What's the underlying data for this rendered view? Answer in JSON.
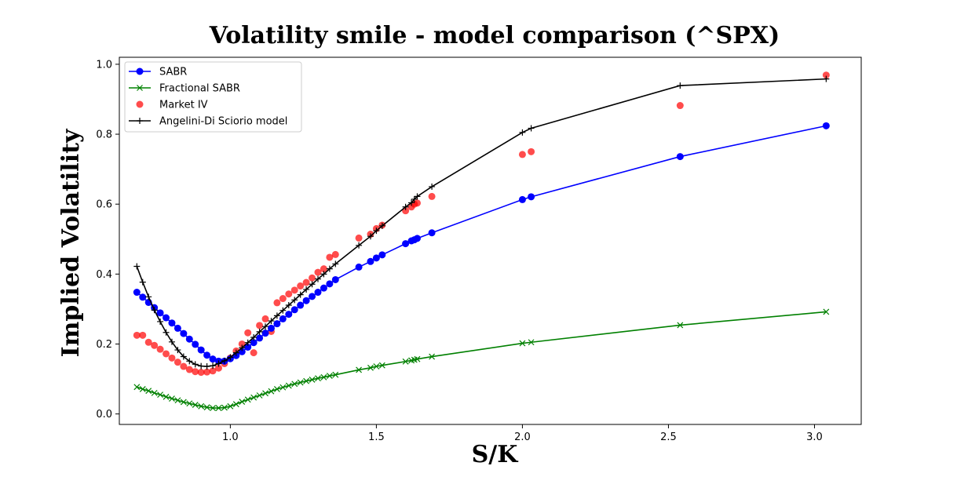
{
  "chart_data": {
    "type": "line",
    "title": "Volatility smile - model comparison (^SPX)",
    "xlabel": "S/K",
    "ylabel": "Implied Volatility",
    "xlim": [
      0.62,
      3.16
    ],
    "ylim": [
      -0.03,
      1.02
    ],
    "xticks": [
      1.0,
      1.5,
      2.0,
      2.5,
      3.0
    ],
    "xtick_labels": [
      "1.0",
      "1.5",
      "2.0",
      "2.5",
      "3.0"
    ],
    "yticks": [
      0.0,
      0.2,
      0.4,
      0.6,
      0.8,
      1.0
    ],
    "ytick_labels": [
      "0.0",
      "0.2",
      "0.4",
      "0.6",
      "0.8",
      "1.0"
    ],
    "grid": false,
    "legend_position": "top-left",
    "x": [
      0.68,
      0.7,
      0.72,
      0.74,
      0.76,
      0.78,
      0.8,
      0.82,
      0.84,
      0.86,
      0.88,
      0.9,
      0.92,
      0.94,
      0.96,
      0.98,
      1.0,
      1.02,
      1.04,
      1.06,
      1.08,
      1.1,
      1.12,
      1.14,
      1.16,
      1.18,
      1.2,
      1.22,
      1.24,
      1.26,
      1.28,
      1.3,
      1.32,
      1.34,
      1.36,
      1.44,
      1.48,
      1.5,
      1.52,
      1.6,
      1.62,
      1.63,
      1.64,
      1.69,
      2.0,
      2.03,
      2.54,
      3.04
    ],
    "series": [
      {
        "name": "SABR",
        "color": "#0000ff",
        "marker": "circle",
        "values": [
          0.348,
          0.334,
          0.319,
          0.304,
          0.289,
          0.275,
          0.26,
          0.245,
          0.23,
          0.214,
          0.199,
          0.183,
          0.168,
          0.157,
          0.151,
          0.151,
          0.158,
          0.167,
          0.178,
          0.191,
          0.204,
          0.217,
          0.231,
          0.245,
          0.258,
          0.272,
          0.285,
          0.298,
          0.311,
          0.324,
          0.336,
          0.348,
          0.36,
          0.372,
          0.384,
          0.42,
          0.436,
          0.446,
          0.455,
          0.487,
          0.495,
          0.498,
          0.502,
          0.518,
          0.613,
          0.621,
          0.736,
          0.824
        ]
      },
      {
        "name": "Fractional SABR",
        "color": "#008000",
        "marker": "x",
        "values": [
          0.077,
          0.071,
          0.066,
          0.06,
          0.055,
          0.049,
          0.044,
          0.039,
          0.034,
          0.03,
          0.026,
          0.022,
          0.019,
          0.017,
          0.017,
          0.018,
          0.022,
          0.028,
          0.035,
          0.041,
          0.047,
          0.053,
          0.059,
          0.065,
          0.071,
          0.076,
          0.081,
          0.086,
          0.09,
          0.094,
          0.098,
          0.102,
          0.105,
          0.109,
          0.112,
          0.126,
          0.132,
          0.136,
          0.139,
          0.15,
          0.153,
          0.155,
          0.157,
          0.164,
          0.202,
          0.205,
          0.254,
          0.292
        ]
      },
      {
        "name": "Market IV",
        "color": "#ff0000",
        "marker": "scatter",
        "values": [
          0.225,
          0.225,
          0.205,
          0.196,
          0.185,
          0.172,
          0.16,
          0.148,
          0.136,
          0.127,
          0.121,
          0.119,
          0.12,
          0.123,
          0.131,
          0.144,
          0.16,
          0.18,
          0.2,
          0.232,
          0.175,
          0.253,
          0.272,
          0.236,
          0.318,
          0.33,
          0.343,
          0.354,
          0.366,
          0.376,
          0.389,
          0.405,
          0.415,
          0.448,
          0.456,
          0.503,
          0.514,
          0.53,
          0.54,
          0.581,
          0.592,
          0.6,
          0.603,
          0.622,
          0.742,
          0.75,
          0.882,
          0.969
        ]
      },
      {
        "name": "Angelini-Di Sciorio model",
        "color": "#000000",
        "marker": "plus",
        "values": [
          0.422,
          0.377,
          0.335,
          0.297,
          0.264,
          0.233,
          0.206,
          0.183,
          0.164,
          0.151,
          0.142,
          0.137,
          0.136,
          0.138,
          0.144,
          0.152,
          0.162,
          0.175,
          0.189,
          0.204,
          0.219,
          0.235,
          0.25,
          0.266,
          0.281,
          0.296,
          0.311,
          0.326,
          0.341,
          0.356,
          0.371,
          0.386,
          0.4,
          0.415,
          0.429,
          0.482,
          0.508,
          0.524,
          0.538,
          0.592,
          0.604,
          0.614,
          0.622,
          0.65,
          0.805,
          0.817,
          0.939,
          0.958
        ]
      }
    ]
  }
}
